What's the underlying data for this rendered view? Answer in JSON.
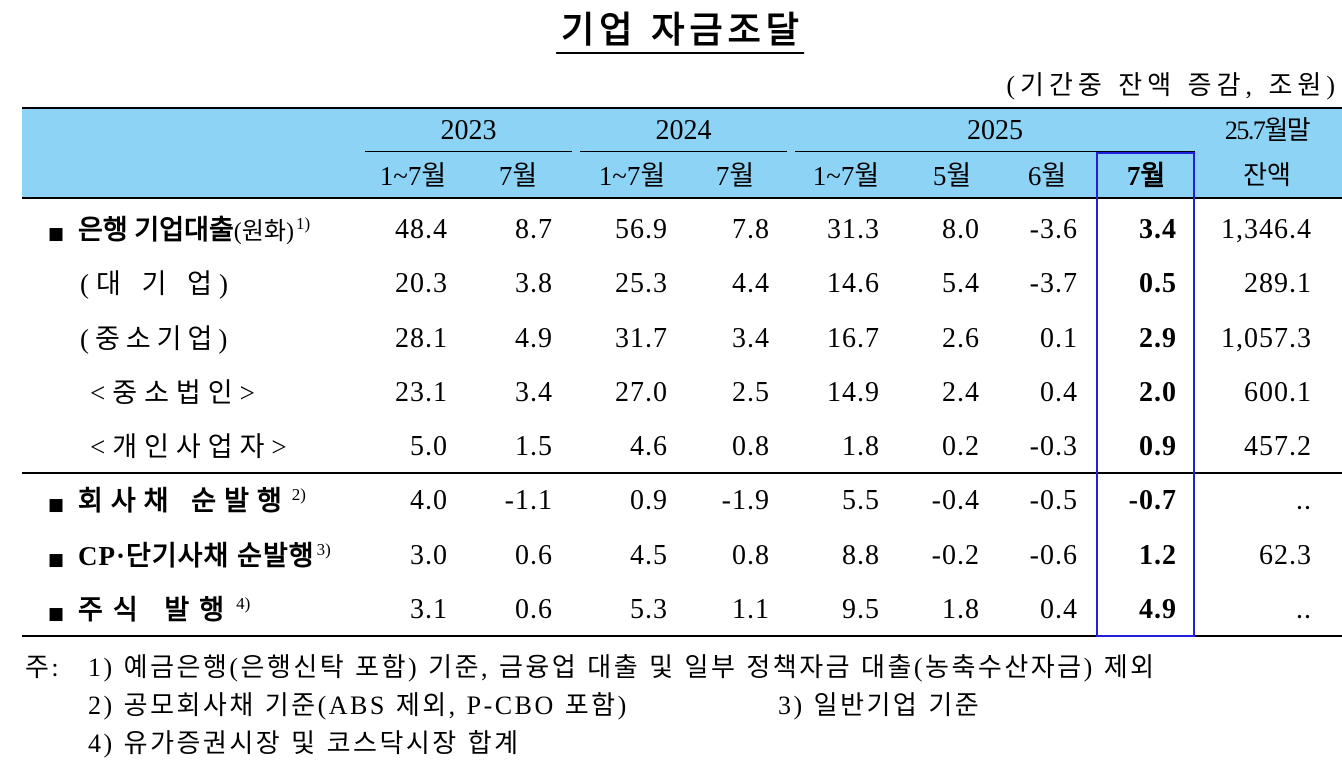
{
  "title": "기업 자금조달",
  "unit_note": "(기간중 잔액 증감, 조원)",
  "header": {
    "years": [
      "2023",
      "2024",
      "2025"
    ],
    "balance_label_top": "25.7월말",
    "balance_label_bottom": "잔액",
    "periods": [
      "1~7월",
      "7월",
      "1~7월",
      "7월",
      "1~7월",
      "5월",
      "6월",
      "7월"
    ]
  },
  "rows": [
    {
      "level": "main",
      "marker": "■",
      "label": "은행 기업대출",
      "label_suffix": "(원화)",
      "note": "1)",
      "values": [
        "48.4",
        "8.7",
        "56.9",
        "7.8",
        "31.3",
        "8.0",
        "-3.6",
        "3.4"
      ],
      "balance": "1,346.4"
    },
    {
      "level": "sub",
      "label": "(대 기 업)",
      "values": [
        "20.3",
        "3.8",
        "25.3",
        "4.4",
        "14.6",
        "5.4",
        "-3.7",
        "0.5"
      ],
      "balance": "289.1"
    },
    {
      "level": "sub",
      "label": "(중소기업)",
      "values": [
        "28.1",
        "4.9",
        "31.7",
        "3.4",
        "16.7",
        "2.6",
        "0.1",
        "2.9"
      ],
      "balance": "1,057.3"
    },
    {
      "level": "subsub",
      "label": "<중소법인>",
      "values": [
        "23.1",
        "3.4",
        "27.0",
        "2.5",
        "14.9",
        "2.4",
        "0.4",
        "2.0"
      ],
      "balance": "600.1"
    },
    {
      "level": "subsub",
      "label": "<개인사업자>",
      "values": [
        "5.0",
        "1.5",
        "4.6",
        "0.8",
        "1.8",
        "0.2",
        "-0.3",
        "0.9"
      ],
      "balance": "457.2"
    },
    {
      "level": "main",
      "marker": "■",
      "label": "회사채 순발행",
      "note": "2)",
      "values": [
        "4.0",
        "-1.1",
        "0.9",
        "-1.9",
        "5.5",
        "-0.4",
        "-0.5",
        "-0.7"
      ],
      "balance": ".."
    },
    {
      "level": "main",
      "marker": "■",
      "label": "CP·단기사채 순발행",
      "note": "3)",
      "values": [
        "3.0",
        "0.6",
        "4.5",
        "0.8",
        "8.8",
        "-0.2",
        "-0.6",
        "1.2"
      ],
      "balance": "62.3"
    },
    {
      "level": "main",
      "marker": "■",
      "label": "주식 발행",
      "note": "4)",
      "values": [
        "3.1",
        "0.6",
        "5.3",
        "1.1",
        "9.5",
        "1.8",
        "0.4",
        "4.9"
      ],
      "balance": ".."
    }
  ],
  "footnotes": {
    "prefix": "주:",
    "notes": [
      "1) 예금은행(은행신탁 포함) 기준, 금융업 대출 및 일부 정책자금 대출(농축수산자금) 제외",
      "2) 공모회사채 기준(ABS 제외, P-CBO 포함)",
      "3) 일반기업 기준",
      "4) 유가증권시장 및 코스닥시장 합계"
    ]
  },
  "colors": {
    "header_background": "#8dd3f5",
    "highlight_border": "#1f1fdc",
    "text": "#000000"
  }
}
